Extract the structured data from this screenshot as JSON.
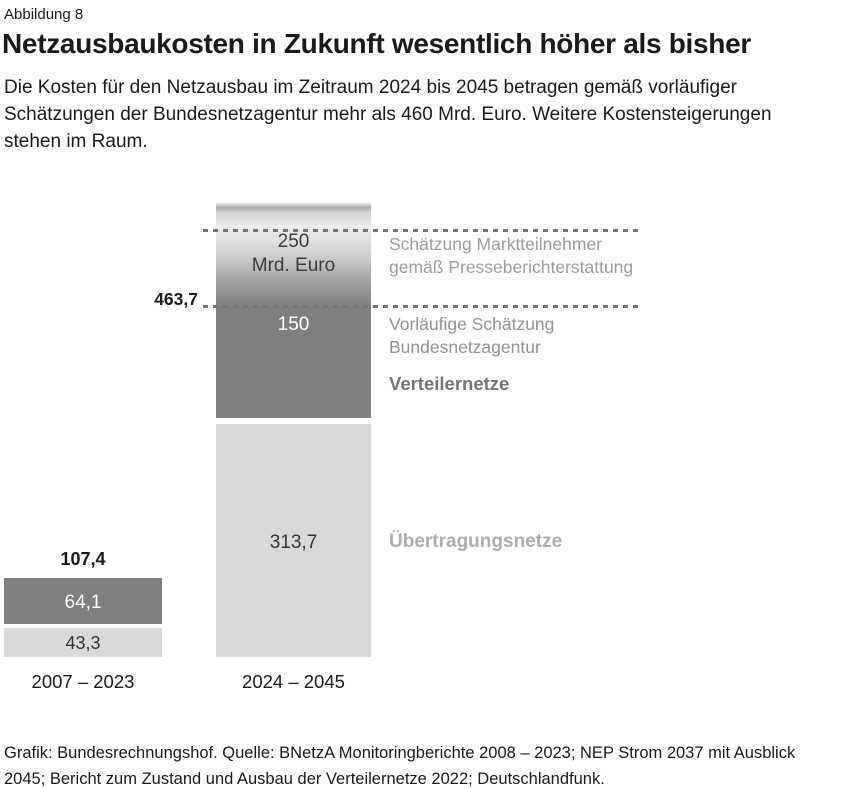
{
  "figure_label": "Abbildung 8",
  "title": "Netzausbaukosten in Zukunft wesentlich höher als bisher",
  "subtitle": "Die Kosten für den Netzausbau im Zeitraum 2024 bis 2045 betragen gemäß vorläufiger\nSchätzungen der Bundesnetzagentur mehr als 460 Mrd. Euro. Weitere Kostensteigerungen\nstehen im Raum.",
  "source": "Grafik: Bundesrechnungshof. Quelle: BNetzA Monitoringberichte 2008 – 2023; NEP Strom 2037 mit Ausblick\n2045; Bericht zum Zustand und Ausbau der Verteilernetze 2022; Deutschlandfunk.",
  "chart_data": {
    "type": "bar",
    "subtype": "stacked-column",
    "unit": "Mrd. Euro",
    "categories": [
      "2007 – 2023",
      "2024 – 2045"
    ],
    "series": [
      {
        "name": "Übertragungsnetze",
        "values": [
          43.3,
          313.7
        ],
        "color": "#d9d9d9"
      },
      {
        "name": "Verteilernetze",
        "values": [
          64.1,
          150
        ],
        "color": "#7f7f7f"
      },
      {
        "name": "Schätzung Marktteilnehmer gemäß Presseberichterstattung",
        "values": [
          null,
          250
        ],
        "color": "gradient-fade-open-ended"
      }
    ],
    "totals": [
      107.4,
      463.7
    ],
    "annotations": [
      "Schätzung Marktteilnehmer gemäß Presseberichterstattung",
      "Vorläufige Schätzung Bundesnetzagentur",
      "Verteilernetze",
      "Übertragungsnetze"
    ],
    "grid": "two dashed horizontal guide lines bracketing the open-ended 250 Mrd. Euro segment",
    "legend_position": "right-of-bar labels"
  },
  "bars": {
    "left": {
      "total_label": "107,4",
      "dark_label": "64,1",
      "light_label": "43,3",
      "category": "2007 – 2023"
    },
    "right": {
      "gradient_label": "250\nMrd. Euro",
      "dark_label": "150",
      "light_label": "313,7",
      "total_label": "463,7",
      "category": "2024 – 2045"
    }
  },
  "annotations": {
    "market": "Schätzung Marktteilnehmer\ngemäß Presseberichterstattung",
    "bnetza": "Vorläufige Schätzung\nBundesnetzagentur",
    "verteilernetze": "Verteilernetze",
    "uebertragungsnetze": "Übertragungsnetze"
  },
  "colors": {
    "dark_segment": "#7f7f7f",
    "light_segment": "#d9d9d9",
    "annotation_gray": "#9c9c9c",
    "text": "#1a1a1a",
    "dashed_line": "#757575"
  }
}
